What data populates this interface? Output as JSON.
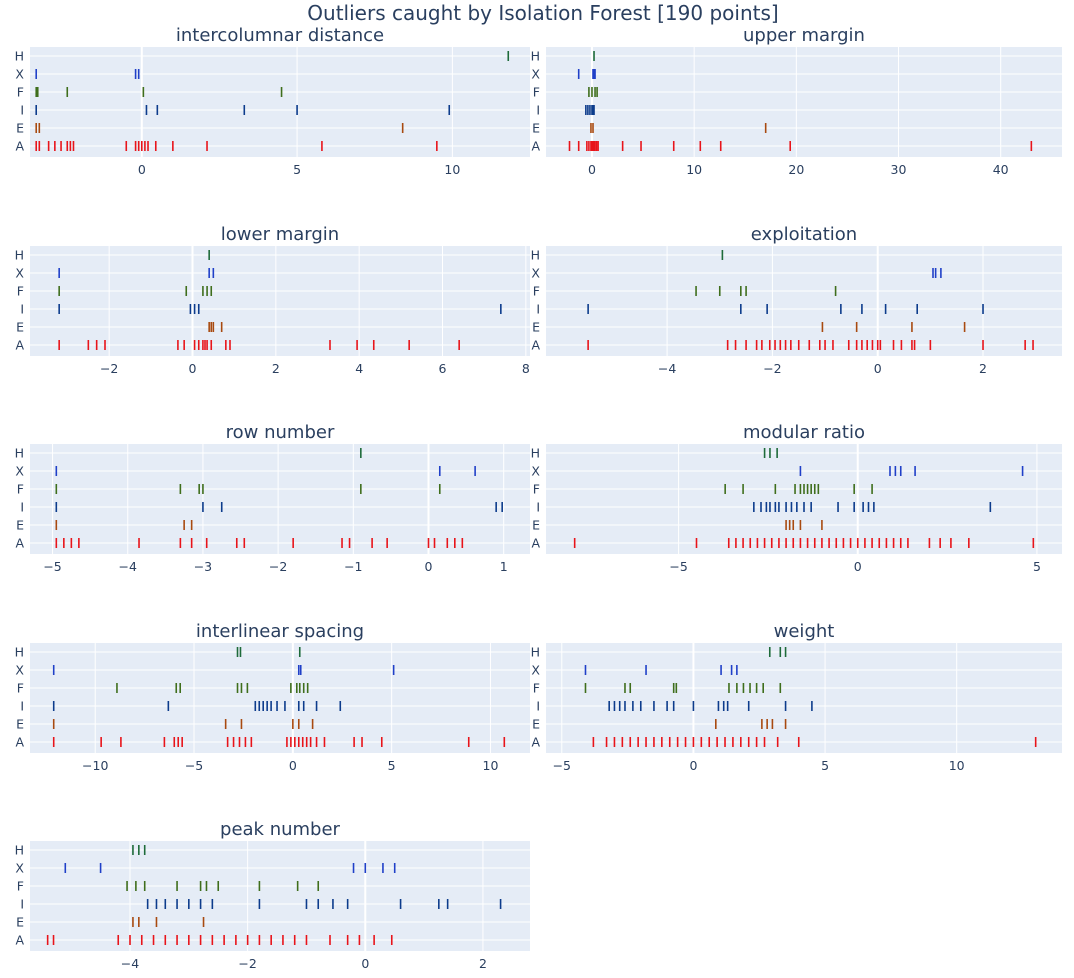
{
  "title": "Outliers caught by Isolation Forest [190 points]",
  "colors": {
    "H": "#1e6b3a",
    "X": "#2040c8",
    "F": "#3f6e1c",
    "I": "#0d3c8c",
    "E": "#a84a10",
    "A": "#e8141a"
  },
  "chart_data": [
    {
      "type": "strip",
      "title": "intercolumnar distance",
      "categories": [
        "H",
        "X",
        "F",
        "I",
        "E",
        "A"
      ],
      "xlim": [
        -3.6,
        12.5
      ],
      "xticks": [
        0,
        5,
        10
      ],
      "tick_labels": [
        "0",
        "5",
        "10"
      ],
      "series": {
        "H": [
          11.8
        ],
        "X": [
          -3.4,
          -0.2,
          -0.1
        ],
        "F": [
          -3.4,
          -3.35,
          -2.4,
          0.05,
          4.5
        ],
        "I": [
          -3.4,
          0.15,
          0.5,
          3.3,
          5.0,
          9.9
        ],
        "E": [
          -3.4,
          -3.3,
          8.4
        ],
        "A": [
          -3.4,
          -3.3,
          -3.0,
          -2.8,
          -2.6,
          -2.4,
          -2.3,
          -2.2,
          -0.5,
          -0.2,
          -0.1,
          0.0,
          0.1,
          0.2,
          0.45,
          1.0,
          2.1,
          5.8,
          9.5
        ]
      }
    },
    {
      "type": "strip",
      "title": "upper margin",
      "categories": [
        "H",
        "X",
        "F",
        "I",
        "E",
        "A"
      ],
      "xlim": [
        -4.5,
        46
      ],
      "xticks": [
        0,
        10,
        20,
        30,
        40
      ],
      "tick_labels": [
        "0",
        "10",
        "20",
        "30",
        "40"
      ],
      "series": {
        "H": [
          0.2
        ],
        "X": [
          -1.3,
          0.1,
          0.2,
          0.3
        ],
        "F": [
          -0.3,
          0.0,
          0.3,
          0.5
        ],
        "I": [
          -0.6,
          -0.4,
          -0.2,
          0.0,
          0.1,
          0.2
        ],
        "E": [
          -0.1,
          0.1,
          17.0
        ],
        "A": [
          -2.2,
          -1.3,
          -0.5,
          -0.3,
          -0.1,
          0.0,
          0.1,
          0.2,
          0.3,
          0.45,
          0.6,
          3.0,
          4.8,
          8.0,
          10.6,
          12.6,
          19.4,
          43.0
        ]
      }
    },
    {
      "type": "strip",
      "title": "lower margin",
      "categories": [
        "H",
        "X",
        "F",
        "I",
        "E",
        "A"
      ],
      "xlim": [
        -3.9,
        8.1
      ],
      "xticks": [
        -2,
        0,
        2,
        4,
        6,
        8
      ],
      "tick_labels": [
        "−2",
        "0",
        "2",
        "4",
        "6",
        "8"
      ],
      "series": {
        "H": [
          0.4
        ],
        "X": [
          -3.2,
          0.4,
          0.5
        ],
        "F": [
          -3.2,
          -0.15,
          0.25,
          0.35,
          0.45
        ],
        "I": [
          -3.2,
          -0.05,
          0.05,
          0.15,
          7.4
        ],
        "E": [
          0.4,
          0.45,
          0.5,
          0.7
        ],
        "A": [
          -3.2,
          -2.5,
          -2.3,
          -2.1,
          -0.35,
          -0.2,
          0.05,
          0.15,
          0.25,
          0.3,
          0.35,
          0.45,
          0.8,
          0.9,
          3.3,
          3.95,
          4.35,
          5.2,
          6.4
        ]
      }
    },
    {
      "type": "strip",
      "title": "exploitation",
      "categories": [
        "H",
        "X",
        "F",
        "I",
        "E",
        "A"
      ],
      "xlim": [
        -6.3,
        3.5
      ],
      "xticks": [
        -4,
        -2,
        0,
        2
      ],
      "tick_labels": [
        "−4",
        "−2",
        "0",
        "2"
      ],
      "series": {
        "H": [
          -2.95
        ],
        "X": [
          1.05,
          1.1,
          1.2
        ],
        "F": [
          -3.45,
          -3.0,
          -2.6,
          -2.5,
          -0.8
        ],
        "I": [
          -5.5,
          -2.6,
          -2.1,
          -0.7,
          -0.3,
          0.15,
          0.75,
          2.0
        ],
        "E": [
          -1.05,
          -0.4,
          0.65,
          1.65
        ],
        "A": [
          -5.5,
          -2.85,
          -2.7,
          -2.5,
          -2.3,
          -2.2,
          -2.05,
          -1.95,
          -1.85,
          -1.75,
          -1.65,
          -1.5,
          -1.3,
          -1.1,
          -1.0,
          -0.85,
          -0.55,
          -0.4,
          -0.3,
          -0.2,
          -0.1,
          0.0,
          0.05,
          0.3,
          0.45,
          0.65,
          0.7,
          1.0,
          2.0,
          2.8,
          2.95
        ]
      }
    },
    {
      "type": "strip",
      "title": "row number",
      "categories": [
        "H",
        "X",
        "F",
        "I",
        "E",
        "A"
      ],
      "xlim": [
        -5.3,
        1.35
      ],
      "xticks": [
        -5,
        -4,
        -3,
        -2,
        -1,
        0,
        1
      ],
      "tick_labels": [
        "−5",
        "−4",
        "−3",
        "−2",
        "−1",
        "0",
        "1"
      ],
      "series": {
        "H": [
          -0.9
        ],
        "X": [
          -4.95,
          0.15,
          0.62
        ],
        "F": [
          -4.95,
          -3.3,
          -3.05,
          -3.0,
          -0.9,
          0.15
        ],
        "I": [
          -4.95,
          -3.0,
          -2.75,
          0.9,
          0.98
        ],
        "E": [
          -4.95,
          -3.25,
          -3.15
        ],
        "A": [
          -4.95,
          -4.85,
          -4.75,
          -4.65,
          -3.85,
          -3.3,
          -3.15,
          -2.95,
          -2.55,
          -2.45,
          -1.8,
          -1.15,
          -1.05,
          -0.75,
          -0.55,
          0.0,
          0.08,
          0.25,
          0.35,
          0.45
        ]
      }
    },
    {
      "type": "strip",
      "title": "modular ratio",
      "categories": [
        "H",
        "X",
        "F",
        "I",
        "E",
        "A"
      ],
      "xlim": [
        -8.7,
        5.7
      ],
      "xticks": [
        -5,
        0,
        5
      ],
      "tick_labels": [
        "−5",
        "0",
        "5"
      ],
      "series": {
        "H": [
          -2.6,
          -2.45,
          -2.25
        ],
        "X": [
          -1.6,
          0.9,
          1.05,
          1.2,
          1.6,
          4.6
        ],
        "F": [
          -3.7,
          -3.2,
          -2.3,
          -1.75,
          -1.6,
          -1.5,
          -1.4,
          -1.3,
          -1.2,
          -1.1,
          -0.1,
          0.4
        ],
        "I": [
          -2.9,
          -2.7,
          -2.55,
          -2.45,
          -2.3,
          -2.2,
          -2.0,
          -1.85,
          -1.7,
          -1.5,
          -1.3,
          -0.55,
          -0.1,
          0.15,
          0.3,
          0.45,
          3.7
        ],
        "E": [
          -2.0,
          -1.9,
          -1.8,
          -1.6,
          -1.0
        ],
        "A": [
          -7.9,
          -4.5,
          -3.6,
          -3.4,
          -3.2,
          -3.0,
          -2.8,
          -2.6,
          -2.4,
          -2.2,
          -2.0,
          -1.8,
          -1.6,
          -1.4,
          -1.2,
          -1.0,
          -0.8,
          -0.6,
          -0.4,
          -0.2,
          0.0,
          0.2,
          0.4,
          0.6,
          0.8,
          1.0,
          1.2,
          1.4,
          2.0,
          2.3,
          2.6,
          3.1,
          4.9
        ]
      }
    },
    {
      "type": "strip",
      "title": "interlinear spacing",
      "categories": [
        "H",
        "X",
        "F",
        "I",
        "E",
        "A"
      ],
      "xlim": [
        -13.3,
        12.0
      ],
      "xticks": [
        -10,
        -5,
        0,
        5,
        10
      ],
      "tick_labels": [
        "−10",
        "−5",
        "0",
        "5",
        "10"
      ],
      "series": {
        "H": [
          -2.8,
          -2.65,
          0.35
        ],
        "X": [
          -12.1,
          0.3,
          0.4,
          5.1
        ],
        "F": [
          -8.9,
          -5.9,
          -5.7,
          -2.8,
          -2.6,
          -2.3,
          -0.1,
          0.2,
          0.35,
          0.55,
          0.75
        ],
        "I": [
          -12.1,
          -6.3,
          -1.9,
          -1.7,
          -1.5,
          -1.3,
          -1.1,
          -0.8,
          -0.4,
          0.3,
          0.55,
          1.2,
          2.4
        ],
        "E": [
          -12.1,
          -3.4,
          -2.6,
          0.0,
          0.3,
          1.0
        ],
        "A": [
          -12.1,
          -9.7,
          -8.7,
          -6.5,
          -6.0,
          -5.8,
          -5.6,
          -3.3,
          -3.0,
          -2.7,
          -2.4,
          -2.1,
          -0.3,
          -0.1,
          0.1,
          0.3,
          0.5,
          0.7,
          0.9,
          1.2,
          1.6,
          3.1,
          3.5,
          4.5,
          8.9,
          10.7
        ]
      }
    },
    {
      "type": "strip",
      "title": "weight",
      "categories": [
        "H",
        "X",
        "F",
        "I",
        "E",
        "A"
      ],
      "xlim": [
        -5.6,
        14.0
      ],
      "xticks": [
        -5,
        0,
        5,
        10
      ],
      "tick_labels": [
        "−5",
        "0",
        "5",
        "10"
      ],
      "series": {
        "H": [
          2.9,
          3.3,
          3.5
        ],
        "X": [
          -4.1,
          -1.8,
          1.05,
          1.45,
          1.65
        ],
        "F": [
          -4.1,
          -2.6,
          -2.4,
          -0.75,
          -0.65,
          1.35,
          1.65,
          1.9,
          2.15,
          2.4,
          2.65,
          3.3
        ],
        "I": [
          -3.2,
          -3.0,
          -2.8,
          -2.6,
          -2.3,
          -2.0,
          -1.5,
          -1.0,
          -0.75,
          0.0,
          0.95,
          1.15,
          1.3,
          2.1,
          3.5,
          4.5
        ],
        "E": [
          0.85,
          2.6,
          2.8,
          3.0,
          3.5
        ],
        "A": [
          -3.8,
          -3.3,
          -3.0,
          -2.7,
          -2.4,
          -2.1,
          -1.8,
          -1.5,
          -1.2,
          -0.9,
          -0.6,
          -0.3,
          0.0,
          0.3,
          0.6,
          0.9,
          1.2,
          1.5,
          1.8,
          2.1,
          2.4,
          2.7,
          3.2,
          4.0,
          13.0
        ]
      }
    },
    {
      "type": "strip",
      "title": "peak number",
      "categories": [
        "H",
        "X",
        "F",
        "I",
        "E",
        "A"
      ],
      "xlim": [
        -5.7,
        2.8
      ],
      "xticks": [
        -4,
        -2,
        0,
        2
      ],
      "tick_labels": [
        "−4",
        "−2",
        "0",
        "2"
      ],
      "series": {
        "H": [
          -3.95,
          -3.85,
          -3.75
        ],
        "X": [
          -5.1,
          -4.5,
          -0.2,
          0.0,
          0.3,
          0.5
        ],
        "F": [
          -4.05,
          -3.9,
          -3.75,
          -3.2,
          -2.8,
          -2.7,
          -2.5,
          -1.8,
          -1.15,
          -0.8
        ],
        "I": [
          -3.7,
          -3.55,
          -3.4,
          -3.2,
          -3.0,
          -2.8,
          -2.6,
          -1.8,
          -1.0,
          -0.8,
          -0.55,
          -0.3,
          0.6,
          1.25,
          1.4,
          2.3
        ],
        "E": [
          -3.95,
          -3.85,
          -3.55,
          -2.75
        ],
        "A": [
          -5.4,
          -5.3,
          -4.2,
          -4.0,
          -3.8,
          -3.6,
          -3.4,
          -3.2,
          -3.0,
          -2.8,
          -2.6,
          -2.4,
          -2.2,
          -2.0,
          -1.8,
          -1.6,
          -1.4,
          -1.2,
          -1.0,
          -0.6,
          -0.3,
          -0.1,
          0.15,
          0.45
        ]
      }
    }
  ]
}
